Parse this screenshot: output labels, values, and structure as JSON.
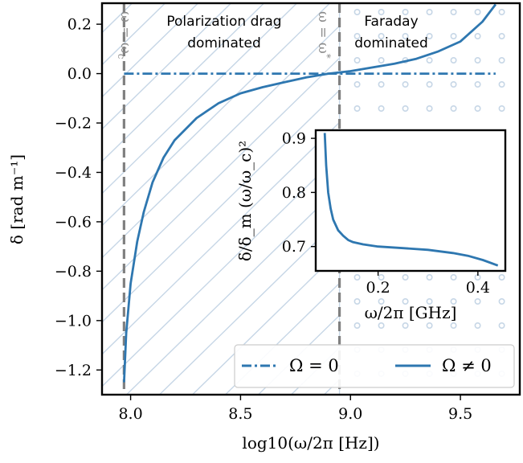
{
  "chart_data": [
    {
      "type": "line",
      "xlabel": "log10(ω/2π [Hz])",
      "ylabel": "δ [rad m⁻¹]",
      "xlim": [
        7.87,
        9.77
      ],
      "ylim": [
        -1.3,
        0.285
      ],
      "x_ticks": [
        8.0,
        8.5,
        9.0,
        9.5
      ],
      "x_tick_labels": [
        "8.0",
        "8.5",
        "9.0",
        "9.5"
      ],
      "y_ticks": [
        0.2,
        0.0,
        -0.2,
        -0.4,
        -0.6,
        -0.8,
        -1.0,
        -1.2
      ],
      "y_tick_labels": [
        "0.2",
        "0.0",
        "−0.2",
        "−0.4",
        "−0.6",
        "−0.8",
        "−1.0",
        "−1.2"
      ],
      "series": [
        {
          "name": "Ω = 0",
          "style": "dashdot",
          "color": "#2e77b0",
          "x": [
            7.97,
            8.2,
            8.4,
            8.6,
            8.8,
            9.0,
            9.2,
            9.4,
            9.6,
            9.66
          ],
          "y": [
            0.0,
            0.0,
            0.0,
            0.0,
            0.0,
            0.0,
            0.0,
            0.0,
            0.0,
            0.0
          ]
        },
        {
          "name": "Ω ≠ 0",
          "style": "solid",
          "color": "#2e77b0",
          "x": [
            7.97,
            7.98,
            8.0,
            8.03,
            8.06,
            8.1,
            8.15,
            8.2,
            8.3,
            8.4,
            8.5,
            8.6,
            8.7,
            8.8,
            8.9,
            9.0,
            9.1,
            9.2,
            9.3,
            9.4,
            9.5,
            9.6,
            9.66
          ],
          "y": [
            -1.25,
            -1.05,
            -0.85,
            -0.68,
            -0.56,
            -0.44,
            -0.34,
            -0.27,
            -0.18,
            -0.12,
            -0.08,
            -0.055,
            -0.035,
            -0.015,
            0.0,
            0.01,
            0.025,
            0.04,
            0.06,
            0.09,
            0.13,
            0.21,
            0.28
          ]
        }
      ],
      "vlines": [
        {
          "x": 7.97,
          "label": "ω = ω_c",
          "label_main": "ω = ω",
          "label_sub": "c",
          "color": "#808080"
        },
        {
          "x": 8.95,
          "label": "ω = ω*",
          "label_main": "ω = ω",
          "label_sup": "*",
          "color": "#808080"
        }
      ],
      "regions": [
        {
          "label_lines": [
            "Polarization drag",
            "dominated"
          ],
          "pattern": "diagonal-hatch"
        },
        {
          "label_lines": [
            "Faraday",
            "dominated"
          ],
          "pattern": "dots"
        }
      ],
      "legend": {
        "position": "lower-right"
      },
      "grid": false
    },
    {
      "type": "line",
      "xlabel": "ω/2π [GHz]",
      "ylabel": "δ/δ_m (ω/ω_c)²",
      "xlim": [
        0.075,
        0.455
      ],
      "ylim": [
        0.655,
        0.915
      ],
      "x_ticks": [
        0.2,
        0.4
      ],
      "x_tick_labels": [
        "0.2",
        "0.4"
      ],
      "y_ticks": [
        0.9,
        0.8,
        0.7
      ],
      "y_tick_labels": [
        "0.9",
        "0.8",
        "0.7"
      ],
      "series": [
        {
          "style": "solid",
          "color": "#2e77b0",
          "x": [
            0.093,
            0.096,
            0.1,
            0.105,
            0.11,
            0.12,
            0.13,
            0.14,
            0.15,
            0.17,
            0.2,
            0.25,
            0.3,
            0.35,
            0.38,
            0.41,
            0.44
          ],
          "y": [
            0.91,
            0.85,
            0.8,
            0.77,
            0.75,
            0.73,
            0.72,
            0.712,
            0.708,
            0.704,
            0.7,
            0.697,
            0.694,
            0.688,
            0.683,
            0.675,
            0.665
          ]
        }
      ]
    }
  ]
}
